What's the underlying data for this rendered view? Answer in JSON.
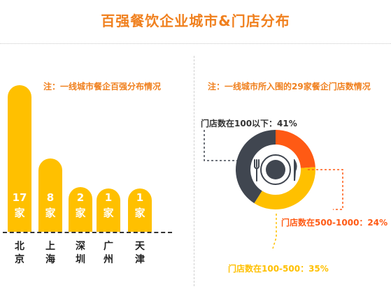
{
  "title": "百强餐饮企业城市&门店分布",
  "left_note": "注：一线城市餐企百强分布情况",
  "right_note": "注：一线城市所入围的29家餐企门店数情况",
  "chart_data": [
    {
      "type": "bar",
      "categories": [
        "北京",
        "上海",
        "深圳",
        "广州",
        "天津"
      ],
      "category_lines": [
        [
          "北",
          "京"
        ],
        [
          "上",
          "海"
        ],
        [
          "深",
          "圳"
        ],
        [
          "广",
          "州"
        ],
        [
          "天",
          "津"
        ]
      ],
      "values": [
        17,
        8,
        2,
        1,
        1
      ],
      "labels": [
        [
          "17",
          "家"
        ],
        [
          "8",
          "家"
        ],
        [
          "2",
          "家"
        ],
        [
          "1",
          "家"
        ],
        [
          "1",
          "家"
        ]
      ],
      "colors": {
        "bar": "#ffc000"
      }
    },
    {
      "type": "pie",
      "categories": [
        "门店数在100以下",
        "门店数在500-1000",
        "门店数在100-500"
      ],
      "values": [
        41,
        24,
        35
      ],
      "callouts": [
        "门店数在100以下：41%",
        "门店数在500-1000：24%",
        "门店数在100-500：35%"
      ],
      "colors": [
        "#404650",
        "#ff5a14",
        "#ffc000"
      ]
    }
  ]
}
